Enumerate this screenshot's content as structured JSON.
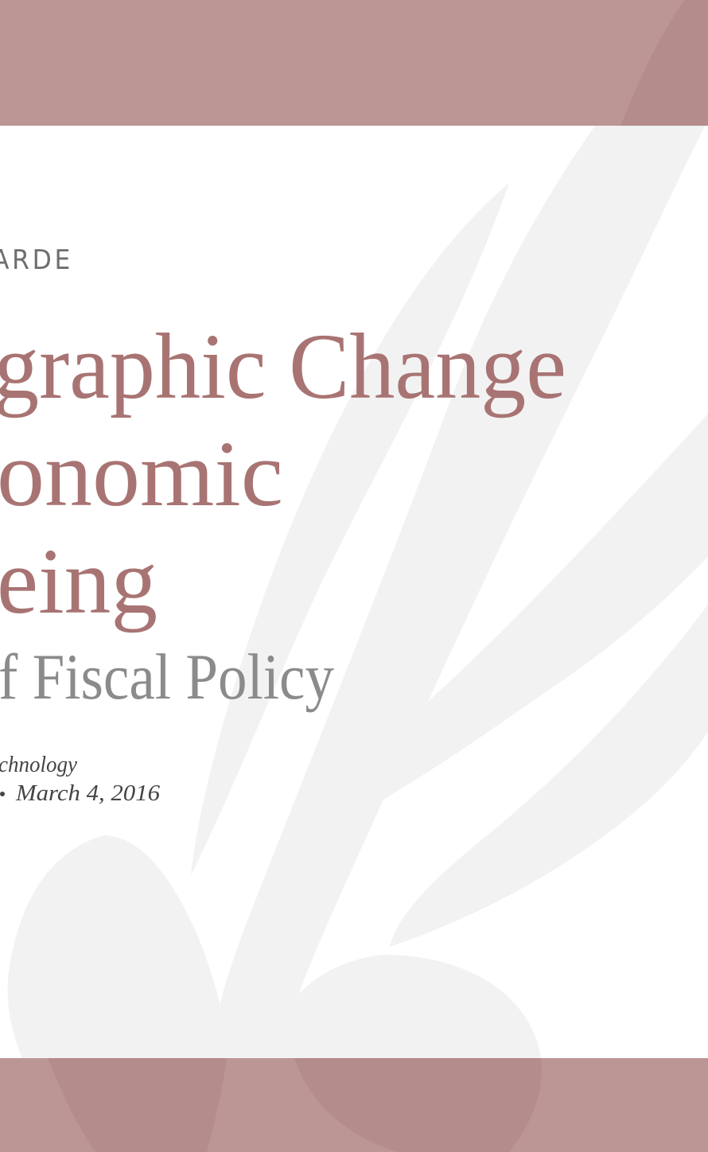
{
  "header": {
    "label": "ARDE"
  },
  "title": {
    "lines": [
      "graphic Change",
      "onomic",
      "eing"
    ]
  },
  "subtitle": "f Fiscal Policy",
  "footer": {
    "lines": [
      "chnology",
      "March 4, 2016"
    ]
  }
}
